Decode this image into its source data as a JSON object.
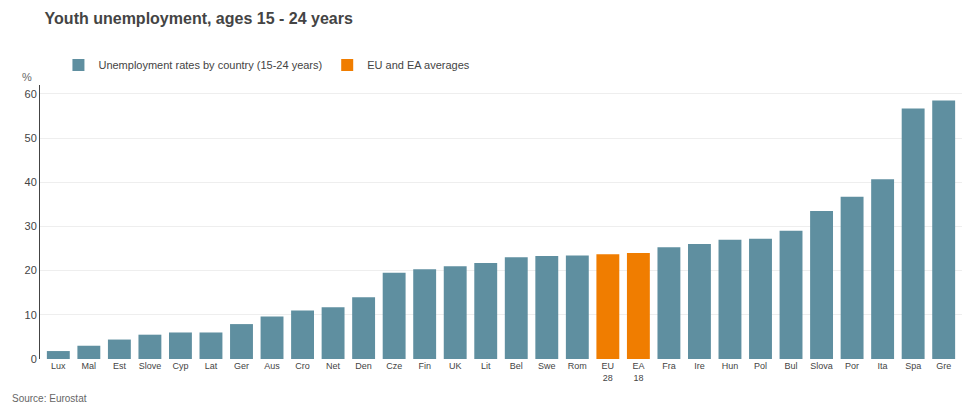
{
  "chart_data": {
    "type": "bar",
    "title": "Youth unemployment, ages 15 - 24 years",
    "ylabel": "%",
    "source": "Source: Eurostat",
    "categories": [
      "Lux",
      "Mal",
      "Est",
      "Slove",
      "Cyp",
      "Lat",
      "Ger",
      "Aus",
      "Cro",
      "Net",
      "Den",
      "Cze",
      "Fin",
      "UK",
      "Lit",
      "Bel",
      "Swe",
      "Rom",
      "EU\n28",
      "EA\n18",
      "Fra",
      "Ire",
      "Hun",
      "Pol",
      "Bul",
      "Slova",
      "Por",
      "Ita",
      "Spa",
      "Gre"
    ],
    "series": [
      {
        "name": "Unemployment rates by country (15-24 years)",
        "color": "#5f8fa0",
        "values": [
          1.8,
          3.0,
          4.4,
          5.5,
          6.0,
          6.0,
          7.9,
          9.6,
          11.0,
          11.7,
          14.0,
          19.5,
          20.3,
          21.0,
          21.7,
          23.0,
          23.3,
          23.4,
          null,
          null,
          25.3,
          26.0,
          27.0,
          27.2,
          29.0,
          33.5,
          36.7,
          40.7,
          56.7,
          58.5
        ]
      },
      {
        "name": "EU and EA averages",
        "color": "#f07d00",
        "values": [
          null,
          null,
          null,
          null,
          null,
          null,
          null,
          null,
          null,
          null,
          null,
          null,
          null,
          null,
          null,
          null,
          null,
          null,
          23.7,
          24.0,
          null,
          null,
          null,
          null,
          null,
          null,
          null,
          null,
          null,
          null
        ]
      }
    ],
    "ylim": [
      0,
      62
    ],
    "yticks": [
      0,
      10,
      20,
      30,
      40,
      50,
      60
    ],
    "grid": true
  }
}
